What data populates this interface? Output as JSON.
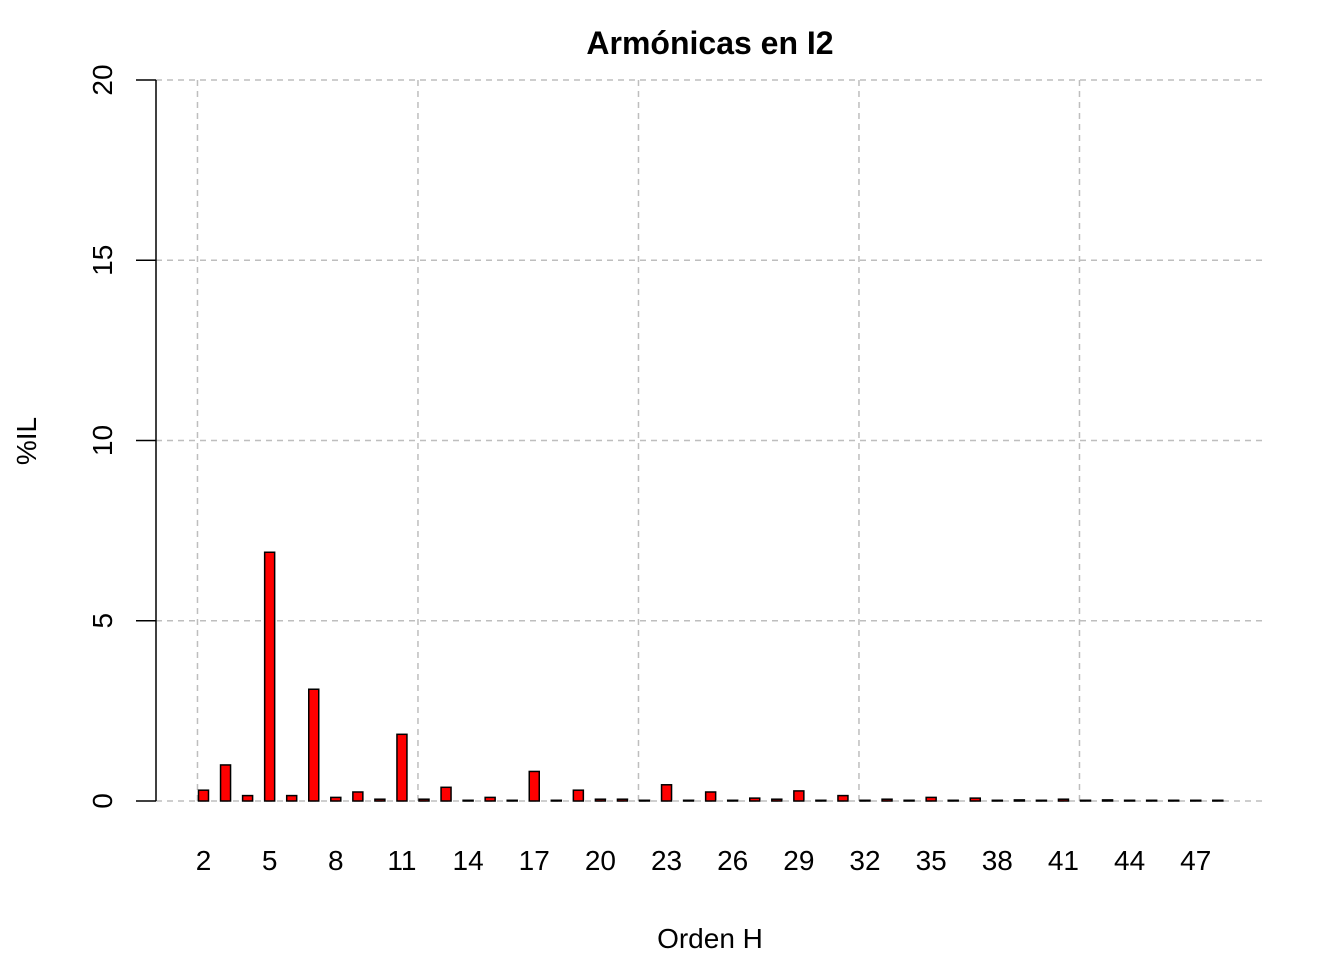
{
  "chart_data": {
    "type": "bar",
    "title": "Armónicas en I2",
    "xlabel": "Orden H",
    "ylabel": "%IL",
    "ylim": [
      0,
      20
    ],
    "yticks": [
      0,
      5,
      10,
      15,
      20
    ],
    "xticks": [
      2,
      5,
      8,
      11,
      14,
      17,
      20,
      23,
      26,
      29,
      32,
      35,
      38,
      41,
      44,
      47
    ],
    "xgrid": [
      2,
      12,
      22,
      32,
      42
    ],
    "grid": true,
    "bar_color": "#ff0000",
    "categories": [
      2,
      3,
      4,
      5,
      6,
      7,
      8,
      9,
      10,
      11,
      12,
      13,
      14,
      15,
      16,
      17,
      18,
      19,
      20,
      21,
      22,
      23,
      24,
      25,
      26,
      27,
      28,
      29,
      30,
      31,
      32,
      33,
      34,
      35,
      36,
      37,
      38,
      39,
      40,
      41,
      42,
      43,
      44,
      45,
      46,
      47,
      48
    ],
    "values": [
      0.3,
      1.0,
      0.15,
      6.9,
      0.15,
      3.1,
      0.1,
      0.25,
      0.05,
      1.85,
      0.05,
      0.38,
      0.02,
      0.1,
      0.02,
      0.82,
      0.02,
      0.3,
      0.05,
      0.05,
      0.02,
      0.45,
      0.02,
      0.25,
      0.02,
      0.08,
      0.05,
      0.28,
      0.02,
      0.15,
      0.02,
      0.05,
      0.02,
      0.1,
      0.02,
      0.08,
      0.02,
      0.03,
      0.02,
      0.05,
      0.02,
      0.03,
      0.02,
      0.02,
      0.02,
      0.02,
      0.02
    ]
  }
}
